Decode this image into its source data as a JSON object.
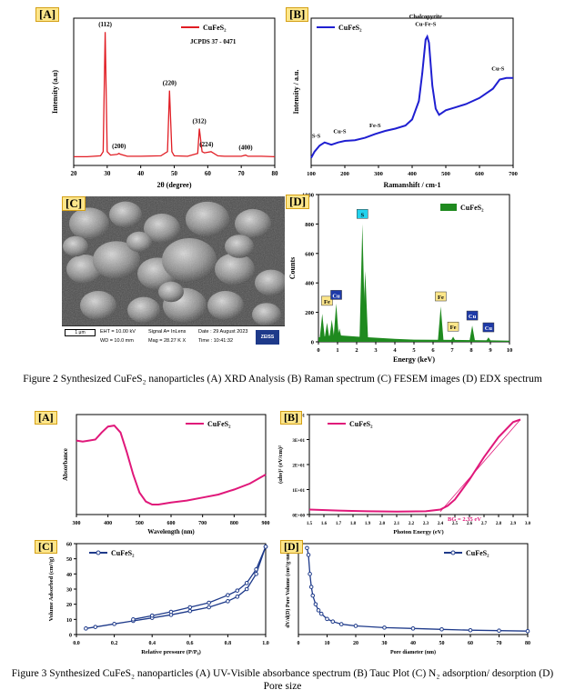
{
  "figure2": {
    "caption": "Figure 2 Synthesized CuFeS₂ nanoparticles (A) XRD Analysis (B) Raman spectrum (C) FESEM images (D) EDX spectrum",
    "panelA": {
      "tag": "[A]",
      "legend": "CuFeS₂",
      "jcpds": "JCPDS 37 - 0471",
      "xlabel": "2θ (degree)",
      "ylabel": "Intensity (a.u)",
      "peaks": [
        {
          "label": "(112)"
        },
        {
          "label": "(200)"
        },
        {
          "label": "(220)"
        },
        {
          "label": "(312)"
        },
        {
          "label": "(224)"
        },
        {
          "label": "(400)"
        }
      ]
    },
    "panelB": {
      "tag": "[B]",
      "legend": "CuFeS₂",
      "xlabel": "Ramanshift / cm-1",
      "ylabel": "Intensity / a.u.",
      "annotations": [
        "S-S",
        "Cu-S",
        "Fe-S",
        "Chalcopyrite",
        "Cu-Fe-S",
        "Cu-S"
      ]
    },
    "panelC": {
      "tag": "[C]",
      "scale": "1 μm",
      "eht": "EHT = 10.00 kV",
      "wd": "WD = 10.0 mm",
      "signal": "Signal A= InLens",
      "mag": "Mag = 28.27 K X",
      "date": "Date : 29 August 2023",
      "time": "Time : 10:41:32",
      "brand": "ZEISS"
    },
    "panelD": {
      "tag": "[D]",
      "legend": "CuFeS₂",
      "xlabel": "Energy (keV)",
      "ylabel": "Counts",
      "elements": [
        "Fe",
        "Cu",
        "S",
        "Fe",
        "Fe",
        "Cu",
        "Cu"
      ]
    }
  },
  "figure3": {
    "caption_line1": "Figure 3 Synthesized CuFeS₂ nanoparticles (A) UV-Visible absorbance spectrum (B) Tauc Plot (C) N₂ adsorption/ desorption  (D)",
    "caption_line2": "Pore size",
    "panelA": {
      "tag": "[A]",
      "legend": "CuFeS₂",
      "xlabel": "Wavelength (nm)",
      "ylabel": "Absorbance"
    },
    "panelB": {
      "tag": "[B]",
      "legend": "CuFeS₂",
      "xlabel": "Photon Energy (eV)",
      "ylabel": "(αhν)² (eV/cm)²",
      "bandgap": "BG = 2.35 eV"
    },
    "panelC": {
      "tag": "[C]",
      "legend": "CuFeS₂",
      "xlabel": "Relative pressure (P/P₀)",
      "ylabel": "Volume Adsorbed (cm³/g)"
    },
    "panelD": {
      "tag": "[D]",
      "legend": "CuFeS₂",
      "xlabel": "Pore diameter (nm)",
      "ylabel": "dV/d(D) Pore Volume (cm³/g·nm)"
    }
  },
  "chart_data": [
    {
      "type": "line",
      "id": "xrd",
      "xlim": [
        20,
        80
      ],
      "xticks": [
        20,
        30,
        40,
        50,
        60,
        70,
        80
      ],
      "series": [
        {
          "name": "CuFeS₂",
          "color": "#e11d24",
          "x": [
            20,
            24,
            28,
            28.8,
            29.4,
            30,
            31,
            33,
            33.5,
            34,
            36,
            40,
            46,
            48,
            48.6,
            49.3,
            50,
            54,
            57,
            57.5,
            58.3,
            59,
            61,
            63,
            65,
            70,
            71.3,
            72,
            76,
            80
          ],
          "y": [
            38,
            38,
            42,
            60,
            580,
            60,
            45,
            48,
            52,
            48,
            40,
            40,
            42,
            60,
            325,
            60,
            42,
            40,
            52,
            160,
            60,
            55,
            60,
            42,
            40,
            40,
            45,
            40,
            40,
            38
          ]
        }
      ]
    },
    {
      "type": "line",
      "id": "raman",
      "xlim": [
        100,
        700
      ],
      "ylim": [
        0,
        960
      ],
      "xticks": [
        100,
        200,
        300,
        400,
        500,
        600,
        700
      ],
      "series": [
        {
          "name": "CuFeS₂",
          "color": "#1f1fd1",
          "x": [
            100,
            110,
            125,
            140,
            160,
            180,
            200,
            230,
            260,
            290,
            320,
            350,
            380,
            400,
            420,
            430,
            440,
            445,
            450,
            460,
            470,
            480,
            500,
            530,
            560,
            600,
            640,
            660,
            680,
            700
          ],
          "y": [
            50,
            90,
            130,
            150,
            135,
            150,
            160,
            165,
            180,
            205,
            225,
            240,
            260,
            300,
            420,
            600,
            820,
            840,
            800,
            520,
            370,
            330,
            360,
            380,
            400,
            440,
            500,
            560,
            570,
            570
          ]
        }
      ]
    },
    {
      "type": "bar",
      "id": "edx",
      "xlim": [
        0,
        10
      ],
      "ylim": [
        0,
        1000
      ],
      "yticks": [
        0,
        200,
        400,
        600,
        800,
        1000
      ],
      "xticks": [
        0,
        1,
        2,
        3,
        4,
        5,
        6,
        7,
        8,
        9,
        10
      ],
      "series": [
        {
          "name": "CuFeS₂",
          "color": "#1f8a1f",
          "x": [
            0.2,
            0.45,
            0.7,
            0.93,
            1.1,
            2.3,
            2.45,
            6.4,
            7.05,
            8.05,
            8.9
          ],
          "y": [
            190,
            130,
            150,
            260,
            90,
            800,
            480,
            240,
            35,
            110,
            30
          ]
        }
      ]
    },
    {
      "type": "line",
      "id": "uvvis",
      "xlim": [
        300,
        900
      ],
      "xticks": [
        300,
        400,
        500,
        600,
        700,
        800,
        900
      ],
      "series": [
        {
          "name": "CuFeS₂",
          "color": "#e0187a",
          "x": [
            300,
            320,
            340,
            360,
            380,
            400,
            420,
            440,
            460,
            480,
            500,
            520,
            540,
            560,
            580,
            600,
            650,
            700,
            750,
            800,
            850,
            900
          ],
          "y": [
            0.74,
            0.73,
            0.74,
            0.75,
            0.82,
            0.88,
            0.89,
            0.82,
            0.62,
            0.4,
            0.22,
            0.13,
            0.1,
            0.1,
            0.11,
            0.12,
            0.14,
            0.17,
            0.2,
            0.25,
            0.31,
            0.4
          ]
        }
      ]
    },
    {
      "type": "line",
      "id": "tauc",
      "xlim": [
        1.5,
        3.0
      ],
      "ylim": [
        0,
        40
      ],
      "xticks": [
        1.5,
        1.6,
        1.7,
        1.8,
        1.9,
        2.0,
        2.1,
        2.2,
        2.3,
        2.4,
        2.5,
        2.6,
        2.7,
        2.8,
        2.9,
        3.0
      ],
      "series": [
        {
          "name": "CuFeS₂",
          "color": "#e0187a",
          "x": [
            1.5,
            1.7,
            1.9,
            2.1,
            2.3,
            2.4,
            2.45,
            2.5,
            2.6,
            2.7,
            2.8,
            2.9,
            2.95
          ],
          "y": [
            2.0,
            1.6,
            1.3,
            1.2,
            1.3,
            2.0,
            3.5,
            6,
            14,
            23,
            31,
            37,
            38
          ]
        }
      ]
    },
    {
      "type": "line",
      "id": "bet",
      "xlim": [
        0,
        1.0
      ],
      "ylim": [
        0,
        60
      ],
      "yticks": [
        0,
        10,
        20,
        30,
        40,
        50,
        60
      ],
      "xticks": [
        0,
        0.2,
        0.4,
        0.6,
        0.8,
        1.0
      ],
      "series": [
        {
          "name": "CuFeS₂",
          "color": "#1e3a8a",
          "x": [
            0.05,
            0.1,
            0.2,
            0.3,
            0.4,
            0.5,
            0.6,
            0.7,
            0.8,
            0.85,
            0.9,
            0.95,
            1.0
          ],
          "y": [
            4,
            5,
            7,
            9,
            11,
            13,
            15.5,
            18,
            22,
            25,
            30,
            40,
            58
          ]
        },
        {
          "color": "#1e3a8a",
          "x": [
            1.0,
            0.95,
            0.9,
            0.85,
            0.8,
            0.7,
            0.6,
            0.5,
            0.4,
            0.3
          ],
          "y": [
            58,
            43,
            34,
            29,
            26,
            21,
            18,
            15,
            12.5,
            10
          ]
        }
      ]
    },
    {
      "type": "line",
      "id": "pore",
      "xlim": [
        0,
        80
      ],
      "xticks": [
        0,
        10,
        20,
        30,
        40,
        50,
        60,
        70,
        80
      ],
      "series": [
        {
          "name": "CuFeS₂",
          "color": "#1e3a8a",
          "x": [
            3,
            3.5,
            4,
            4.5,
            5,
            6,
            7,
            8,
            10,
            12,
            15,
            20,
            30,
            40,
            50,
            60,
            70,
            80
          ],
          "y": [
            1.0,
            0.92,
            0.7,
            0.55,
            0.45,
            0.35,
            0.28,
            0.24,
            0.18,
            0.15,
            0.12,
            0.1,
            0.08,
            0.07,
            0.06,
            0.05,
            0.045,
            0.04
          ]
        }
      ]
    }
  ]
}
